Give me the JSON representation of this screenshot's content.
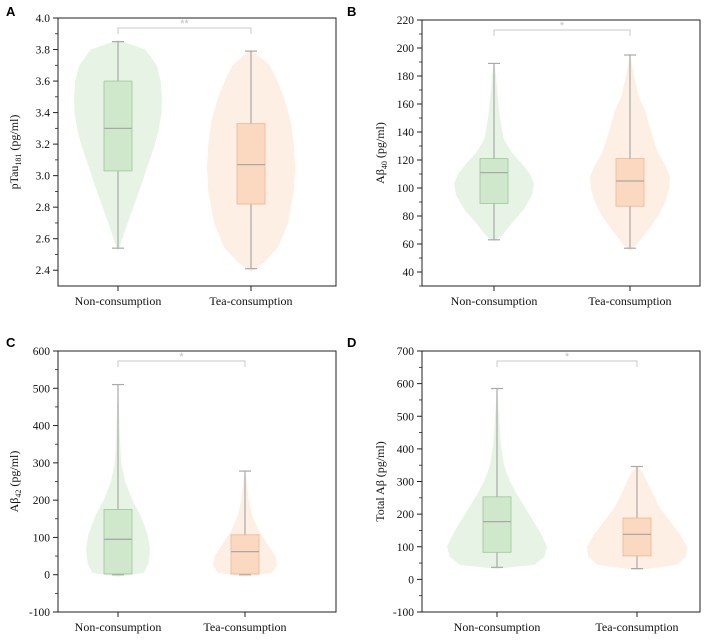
{
  "colors": {
    "non_fill": "#e6f3e4",
    "non_box": "#cfe8cb",
    "non_line": "#9cc796",
    "tea_fill": "#fdeee2",
    "tea_box": "#fbd9c1",
    "tea_line": "#eab895",
    "whisker": "#a9a9a9",
    "median": "#a9a9a9",
    "bracket": "#c8c8c8"
  },
  "chart_data": [
    {
      "type": "violin",
      "panel": "A",
      "categories": [
        "Non-consumption",
        "Tea-consumption"
      ],
      "ylabel_main": "pTau",
      "ylabel_sub": "181",
      "ylabel_unit": " (pg/ml)",
      "ylim": [
        2.3,
        4.0
      ],
      "yticks": [
        2.4,
        2.6,
        2.8,
        3.0,
        3.2,
        3.4,
        3.6,
        3.8,
        4.0
      ],
      "ytick_labels": [
        "2.4",
        "2.6",
        "2.8",
        "3.0",
        "3.2",
        "3.4",
        "3.6",
        "3.8",
        "4.0"
      ],
      "yminor": [
        2.5,
        2.7,
        2.9,
        3.1,
        3.3,
        3.5,
        3.7,
        3.9
      ],
      "significance": "**",
      "series": [
        {
          "name": "Non-consumption",
          "min": 2.54,
          "q1": 3.03,
          "median": 3.3,
          "q3": 3.6,
          "max": 3.85,
          "density": [
            [
              2.52,
              0.0
            ],
            [
              2.6,
              0.1
            ],
            [
              2.7,
              0.22
            ],
            [
              2.8,
              0.35
            ],
            [
              2.9,
              0.48
            ],
            [
              3.0,
              0.6
            ],
            [
              3.1,
              0.72
            ],
            [
              3.2,
              0.84
            ],
            [
              3.3,
              0.93
            ],
            [
              3.4,
              0.99
            ],
            [
              3.5,
              1.0
            ],
            [
              3.6,
              0.97
            ],
            [
              3.7,
              0.88
            ],
            [
              3.8,
              0.62
            ],
            [
              3.86,
              0.0
            ]
          ]
        },
        {
          "name": "Tea-consumption",
          "min": 2.41,
          "q1": 2.82,
          "median": 3.07,
          "q3": 3.33,
          "max": 3.79,
          "density": [
            [
              2.39,
              0.0
            ],
            [
              2.45,
              0.3
            ],
            [
              2.55,
              0.62
            ],
            [
              2.7,
              0.84
            ],
            [
              2.9,
              0.97
            ],
            [
              3.05,
              1.0
            ],
            [
              3.2,
              0.97
            ],
            [
              3.35,
              0.9
            ],
            [
              3.5,
              0.74
            ],
            [
              3.6,
              0.6
            ],
            [
              3.7,
              0.42
            ],
            [
              3.8,
              0.0
            ]
          ]
        }
      ]
    },
    {
      "type": "violin",
      "panel": "B",
      "categories": [
        "Non-consumption",
        "Tea-consumption"
      ],
      "ylabel_main": "Aβ",
      "ylabel_sub": "40",
      "ylabel_unit": " (pg/ml)",
      "ylim": [
        30,
        220
      ],
      "yticks": [
        40,
        60,
        80,
        100,
        120,
        140,
        160,
        180,
        200,
        220
      ],
      "ytick_labels": [
        "40",
        "60",
        "80",
        "100",
        "120",
        "140",
        "160",
        "180",
        "200",
        "220"
      ],
      "yminor": [
        30,
        50,
        70,
        90,
        110,
        130,
        150,
        170,
        190,
        210
      ],
      "significance": "*",
      "series": [
        {
          "name": "Non-consumption",
          "min": 63,
          "q1": 89,
          "median": 111,
          "q3": 121,
          "max": 189,
          "density": [
            [
              62,
              0.0
            ],
            [
              66,
              0.2
            ],
            [
              75,
              0.45
            ],
            [
              85,
              0.75
            ],
            [
              95,
              0.95
            ],
            [
              103,
              1.0
            ],
            [
              110,
              0.9
            ],
            [
              118,
              0.68
            ],
            [
              125,
              0.45
            ],
            [
              135,
              0.24
            ],
            [
              150,
              0.15
            ],
            [
              165,
              0.09
            ],
            [
              180,
              0.05
            ],
            [
              190,
              0.0
            ]
          ]
        },
        {
          "name": "Tea-consumption",
          "min": 57,
          "q1": 87,
          "median": 105,
          "q3": 121,
          "max": 195,
          "density": [
            [
              55,
              0.0
            ],
            [
              60,
              0.18
            ],
            [
              70,
              0.45
            ],
            [
              80,
              0.7
            ],
            [
              90,
              0.88
            ],
            [
              100,
              0.98
            ],
            [
              108,
              1.0
            ],
            [
              116,
              0.88
            ],
            [
              125,
              0.7
            ],
            [
              135,
              0.58
            ],
            [
              145,
              0.48
            ],
            [
              155,
              0.38
            ],
            [
              165,
              0.22
            ],
            [
              180,
              0.1
            ],
            [
              196,
              0.0
            ]
          ]
        }
      ]
    },
    {
      "type": "violin",
      "panel": "C",
      "categories": [
        "Non-consumption",
        "Tea-consumption"
      ],
      "ylabel_main": "Aβ",
      "ylabel_sub": "42",
      "ylabel_unit": " (pg/ml)",
      "ylim": [
        -100,
        600
      ],
      "yticks": [
        -100,
        0,
        100,
        200,
        300,
        400,
        500,
        600
      ],
      "ytick_labels": [
        "-100",
        "0",
        "100",
        "200",
        "300",
        "400",
        "500",
        "600"
      ],
      "yminor": [
        -50,
        50,
        150,
        250,
        350,
        450,
        550
      ],
      "significance": "*",
      "series": [
        {
          "name": "Non-consumption",
          "min": 0,
          "q1": 2,
          "median": 95,
          "q3": 175,
          "max": 510,
          "density": [
            [
              -5,
              0.0
            ],
            [
              5,
              0.8
            ],
            [
              30,
              0.95
            ],
            [
              70,
              1.0
            ],
            [
              110,
              0.92
            ],
            [
              160,
              0.7
            ],
            [
              200,
              0.45
            ],
            [
              250,
              0.22
            ],
            [
              300,
              0.1
            ],
            [
              380,
              0.05
            ],
            [
              450,
              0.03
            ],
            [
              512,
              0.0
            ]
          ]
        },
        {
          "name": "Tea-consumption",
          "min": 0,
          "q1": 2,
          "median": 62,
          "q3": 107,
          "max": 278,
          "density": [
            [
              -5,
              0.0
            ],
            [
              5,
              0.85
            ],
            [
              25,
              1.0
            ],
            [
              50,
              0.95
            ],
            [
              80,
              0.72
            ],
            [
              120,
              0.42
            ],
            [
              160,
              0.22
            ],
            [
              200,
              0.12
            ],
            [
              240,
              0.07
            ],
            [
              280,
              0.0
            ]
          ]
        }
      ]
    },
    {
      "type": "violin",
      "panel": "D",
      "categories": [
        "Non-consumption",
        "Tea-consumption"
      ],
      "ylabel_main": "Total Aβ (pg/ml)",
      "ylabel_sub": "",
      "ylabel_unit": "",
      "ylim": [
        -100,
        700
      ],
      "yticks": [
        -100,
        0,
        100,
        200,
        300,
        400,
        500,
        600,
        700
      ],
      "ytick_labels": [
        "-100",
        "0",
        "100",
        "200",
        "300",
        "400",
        "500",
        "600",
        "700"
      ],
      "yminor": [
        -50,
        50,
        150,
        250,
        350,
        450,
        550,
        650
      ],
      "significance": "*",
      "series": [
        {
          "name": "Non-consumption",
          "min": 37,
          "q1": 83,
          "median": 177,
          "q3": 253,
          "max": 585,
          "density": [
            [
              32,
              0.0
            ],
            [
              45,
              0.75
            ],
            [
              70,
              0.95
            ],
            [
              100,
              1.0
            ],
            [
              140,
              0.88
            ],
            [
              180,
              0.72
            ],
            [
              220,
              0.56
            ],
            [
              260,
              0.4
            ],
            [
              300,
              0.26
            ],
            [
              350,
              0.14
            ],
            [
              420,
              0.07
            ],
            [
              500,
              0.04
            ],
            [
              586,
              0.0
            ]
          ]
        },
        {
          "name": "Tea-consumption",
          "min": 33,
          "q1": 72,
          "median": 138,
          "q3": 188,
          "max": 346,
          "density": [
            [
              28,
              0.0
            ],
            [
              45,
              0.8
            ],
            [
              70,
              0.98
            ],
            [
              100,
              1.0
            ],
            [
              140,
              0.85
            ],
            [
              180,
              0.65
            ],
            [
              220,
              0.45
            ],
            [
              260,
              0.32
            ],
            [
              300,
              0.2
            ],
            [
              330,
              0.1
            ],
            [
              348,
              0.0
            ]
          ]
        }
      ]
    }
  ]
}
